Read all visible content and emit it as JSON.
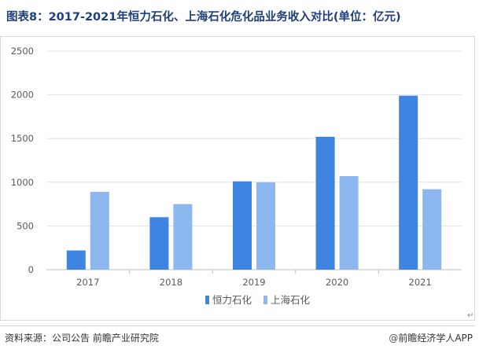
{
  "title": "图表8：2017-2021年恒力石化、上海石化危化品业务收入对比(单位：亿元)",
  "source": "资料来源：公司公告  前瞻产业研究院",
  "brand": {
    "at_symbol": "@",
    "name": "前瞻经济学人APP"
  },
  "colors": {
    "series_a": "#3d85e0",
    "series_b": "#8cb7ef",
    "gridline": "#e3e3e3",
    "axis": "#bfbfbf",
    "title": "#1f3e7c"
  },
  "chart_data": {
    "type": "bar",
    "title": "",
    "xlabel": "",
    "ylabel": "",
    "categories": [
      "2017",
      "2018",
      "2019",
      "2020",
      "2021"
    ],
    "series": [
      {
        "name": "恒力石化",
        "values": [
          220,
          600,
          1010,
          1520,
          1990
        ]
      },
      {
        "name": "上海石化",
        "values": [
          890,
          750,
          1000,
          1070,
          920
        ]
      }
    ],
    "ylim": [
      0,
      2500
    ],
    "yticks": [
      0,
      500,
      1000,
      1500,
      2000,
      2500
    ],
    "grid": true,
    "legend_position": "bottom-center"
  }
}
